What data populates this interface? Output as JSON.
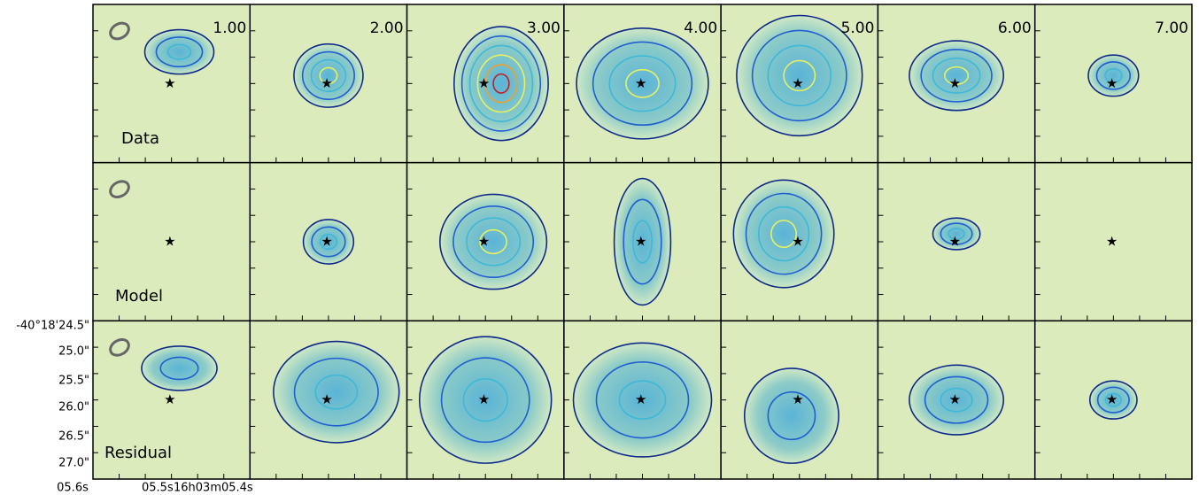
{
  "channels": [
    "1.00",
    "2.00",
    "3.00",
    "4.00",
    "5.00",
    "6.00",
    "7.00"
  ],
  "rows": [
    "Data",
    "Model",
    "Residual"
  ],
  "y_ticks": [
    "-40°18'24.5\"",
    "25.0\"",
    "25.5\"",
    "26.0\"",
    "26.5\"",
    "27.0\""
  ],
  "x_ticks": [
    "05.6s",
    "05.5s",
    "16h03m05.4s"
  ]
}
